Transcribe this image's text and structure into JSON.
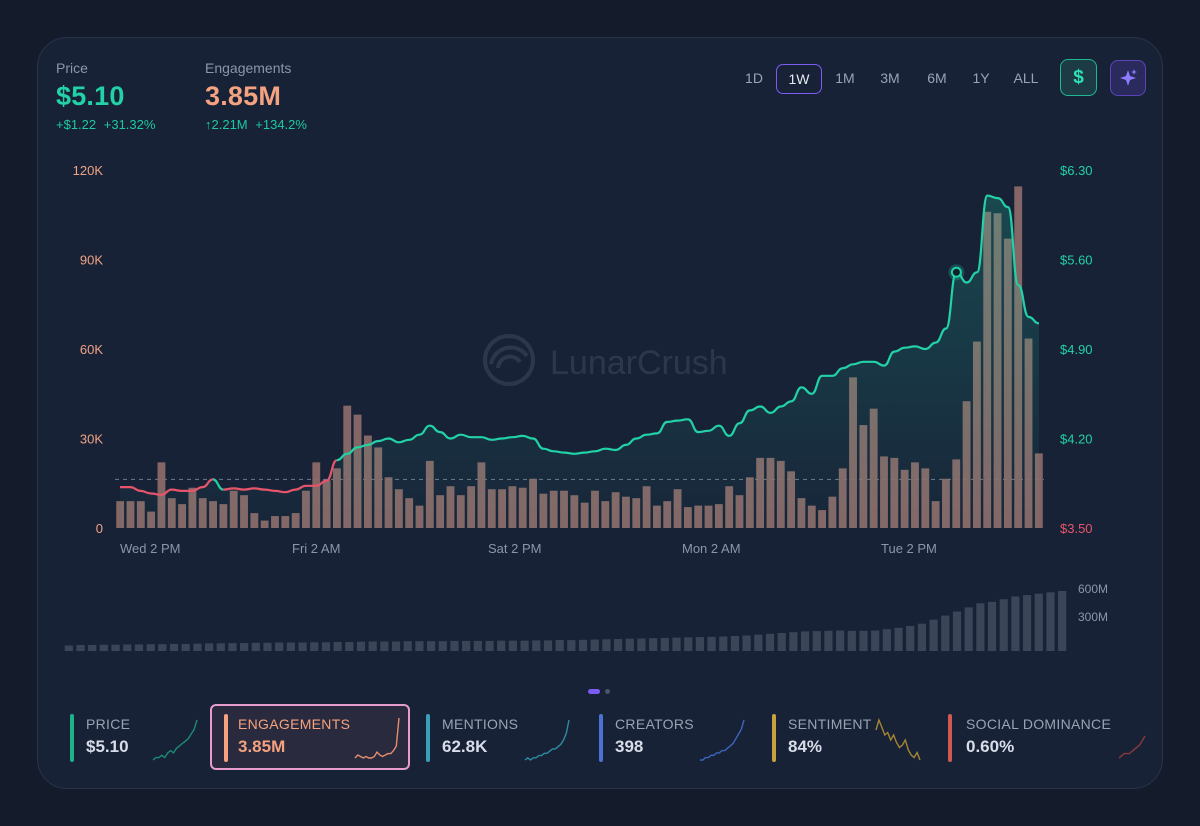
{
  "header": {
    "price": {
      "label": "Price",
      "value": "$5.10",
      "change_abs": "+$1.22",
      "change_pct": "+31.32%"
    },
    "engagements": {
      "label": "Engagements",
      "value": "3.85M",
      "change_abs": "↑2.21M",
      "change_pct": "+134.2%"
    }
  },
  "timeframes": [
    {
      "label": "1D",
      "active": false
    },
    {
      "label": "1W",
      "active": true
    },
    {
      "label": "1M",
      "active": false
    },
    {
      "label": "3M",
      "active": false
    },
    {
      "label": "6M",
      "active": false
    },
    {
      "label": "1Y",
      "active": false
    },
    {
      "label": "ALL",
      "active": false
    }
  ],
  "buttons": {
    "currency_icon": "dollar-icon",
    "ai_icon": "sparkle-icon",
    "currency_symbol": "$"
  },
  "watermark": "LunarCrush",
  "colors": {
    "price_up": "#22d1a6",
    "price_down": "#e8556a",
    "engagement": "#f4a27f",
    "bars": "#8f6c6a",
    "volume": "#3a4558",
    "accent": "#7b5cf0"
  },
  "chart_data": [
    {
      "type": "bar+line",
      "x_tick_labels": [
        "Wed 2 PM",
        "Fri 2 AM",
        "Sat 2 PM",
        "Mon 2 AM",
        "Tue 2 PM"
      ],
      "y_left": {
        "ticks": [
          "0",
          "30K",
          "60K",
          "90K",
          "120K"
        ],
        "range": [
          0,
          120000
        ]
      },
      "y_right": {
        "ticks": [
          "$3.50",
          "$4.20",
          "$4.90",
          "$5.60",
          "$6.30"
        ],
        "range": [
          3.5,
          6.3
        ]
      },
      "series": [
        {
          "name": "Engagements",
          "type": "bar",
          "axis": "left",
          "values": [
            9000,
            9000,
            9000,
            5500,
            22000,
            10000,
            8000,
            13500,
            10000,
            9000,
            8000,
            12500,
            11000,
            5000,
            2500,
            4000,
            4000,
            5000,
            12500,
            22000,
            16000,
            20000,
            41000,
            38000,
            31000,
            27000,
            17000,
            13000,
            10000,
            7500,
            22500,
            11000,
            14000,
            11000,
            14000,
            22000,
            13000,
            13000,
            14000,
            13500,
            16500,
            11500,
            12500,
            12500,
            11000,
            8500,
            12500,
            9000,
            12000,
            10500,
            10000,
            14000,
            7500,
            9000,
            13000,
            7000,
            7500,
            7500,
            8000,
            14000,
            11000,
            17000,
            23500,
            23500,
            22500,
            19000,
            10000,
            7500,
            6000,
            10500,
            20000,
            50500,
            34500,
            40000,
            24000,
            23500,
            19500,
            22000,
            20000,
            9000,
            16500,
            23000,
            42500,
            62500,
            106000,
            105500,
            97000,
            114500,
            63500,
            25000
          ]
        },
        {
          "name": "Price",
          "type": "line",
          "axis": "right",
          "values": [
            3.82,
            3.82,
            3.79,
            3.77,
            3.76,
            3.8,
            3.79,
            3.79,
            3.82,
            3.88,
            3.8,
            3.81,
            3.8,
            3.81,
            3.8,
            3.79,
            3.78,
            3.8,
            3.83,
            3.83,
            3.87,
            4.03,
            4.08,
            4.13,
            4.15,
            4.18,
            4.2,
            4.17,
            4.19,
            4.23,
            4.3,
            4.25,
            4.2,
            4.23,
            4.21,
            4.21,
            4.19,
            4.2,
            4.21,
            4.22,
            4.2,
            4.12,
            4.1,
            4.09,
            4.08,
            4.09,
            4.1,
            4.12,
            4.11,
            4.15,
            4.2,
            4.23,
            4.24,
            4.33,
            4.34,
            4.35,
            4.25,
            4.26,
            4.3,
            4.22,
            4.32,
            4.42,
            4.45,
            4.4,
            4.45,
            4.49,
            4.6,
            4.55,
            4.69,
            4.69,
            4.75,
            4.78,
            4.8,
            4.8,
            4.77,
            4.88,
            4.91,
            4.92,
            4.9,
            4.95,
            5.06,
            5.5,
            5.42,
            5.5,
            6.1,
            6.08,
            6.01,
            5.4,
            5.15,
            5.1
          ]
        }
      ],
      "reference_price": 3.88,
      "highlight_point": 5.5
    },
    {
      "type": "bar",
      "name": "Volume",
      "y_ticks": [
        "300M",
        "600M"
      ],
      "y_range": [
        0,
        600000000
      ],
      "values": [
        20,
        22,
        22,
        23,
        23,
        24,
        24,
        25,
        25,
        26,
        26,
        27,
        28,
        28,
        29,
        29,
        30,
        30,
        31,
        31,
        31,
        32,
        32,
        33,
        33,
        34,
        35,
        35,
        35,
        36,
        36,
        36,
        36,
        37,
        37,
        37,
        37,
        38,
        38,
        38,
        39,
        39,
        40,
        40,
        41,
        42,
        43,
        44,
        45,
        46,
        47,
        48,
        49,
        50,
        51,
        52,
        53,
        55,
        57,
        60,
        63,
        66,
        69,
        72,
        73,
        74,
        75,
        74,
        74,
        75,
        80,
        85,
        92,
        100,
        115,
        130,
        145,
        160,
        175,
        180,
        190,
        200,
        205,
        210,
        215,
        220
      ]
    }
  ],
  "metrics": [
    {
      "label": "PRICE",
      "value": "$5.10",
      "color": "#1fb18a",
      "spark_color": "#1f8a72",
      "selected": false,
      "spark": [
        1,
        2,
        2,
        3,
        2,
        4,
        5,
        4,
        6,
        7,
        8,
        9,
        10,
        12,
        14,
        18
      ]
    },
    {
      "label": "ENGAGEMENTS",
      "value": "3.85M",
      "color": "#f4a27f",
      "spark_color": "#e38e6c",
      "selected": true,
      "spark": [
        1,
        3,
        2,
        1,
        2,
        1,
        1,
        2,
        5,
        3,
        2,
        3,
        4,
        4,
        6,
        9,
        28
      ]
    },
    {
      "label": "MENTIONS",
      "value": "62.8K",
      "color": "#3aa0b9",
      "spark_color": "#2f8aa0",
      "selected": false,
      "spark": [
        2,
        3,
        2,
        3,
        3,
        4,
        4,
        5,
        5,
        6,
        7,
        7,
        8,
        9,
        11,
        14,
        20
      ]
    },
    {
      "label": "CREATORS",
      "value": "398",
      "color": "#4a72d1",
      "spark_color": "#3f64be",
      "selected": false,
      "spark": [
        2,
        2,
        3,
        3,
        4,
        4,
        5,
        5,
        6,
        6,
        7,
        8,
        9,
        11,
        13,
        15,
        19
      ]
    },
    {
      "label": "SENTIMENT",
      "value": "84%",
      "color": "#c9a13c",
      "spark_color": "#a58532",
      "selected": false,
      "spark": [
        14,
        18,
        15,
        12,
        13,
        10,
        12,
        9,
        7,
        8,
        10,
        6,
        4,
        3,
        5,
        2
      ]
    },
    {
      "label": "SOCIAL DOMINANCE",
      "value": "0.60%",
      "color": "#d05a52",
      "spark_color": "#8a3a3a",
      "selected": false,
      "spark": [
        1,
        2,
        2,
        3,
        4,
        6
      ]
    }
  ]
}
